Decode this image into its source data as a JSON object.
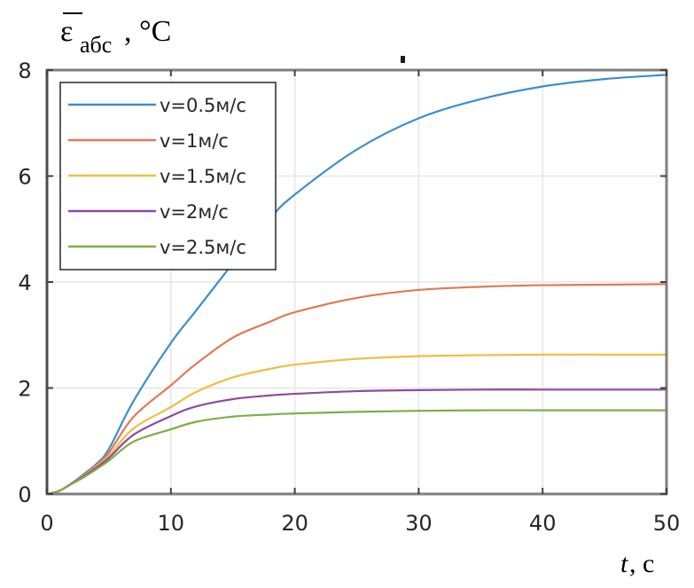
{
  "chart_data": {
    "type": "line",
    "title": "",
    "ylabel": {
      "symbol": "ε",
      "subscript": "абс",
      "unit": ", °C"
    },
    "xlabel": {
      "symbol": "t",
      "unit": ", c"
    },
    "xlim": [
      0,
      50
    ],
    "ylim": [
      0,
      8
    ],
    "xticks": [
      "0",
      "10",
      "20",
      "30",
      "40",
      "50"
    ],
    "yticks": [
      "0",
      "2",
      "4",
      "6",
      "8"
    ],
    "xtick_values": [
      0,
      10,
      20,
      30,
      40,
      50
    ],
    "ytick_values": [
      0,
      2,
      4,
      6,
      8
    ],
    "grid": true,
    "legend_position": "top-left",
    "x": [
      0,
      1,
      2,
      3,
      4,
      5,
      7,
      10,
      12,
      15,
      18,
      20,
      25,
      30,
      35,
      40,
      45,
      50
    ],
    "series": [
      {
        "name": "v=0.5м/с",
        "color": "#3b8fcc",
        "values": [
          0,
          0.06,
          0.2,
          0.38,
          0.57,
          0.85,
          1.76,
          2.85,
          3.45,
          4.35,
          5.2,
          5.65,
          6.5,
          7.09,
          7.45,
          7.69,
          7.83,
          7.91
        ]
      },
      {
        "name": "v=1м/с",
        "color": "#e07a55",
        "values": [
          0,
          0.06,
          0.2,
          0.36,
          0.55,
          0.78,
          1.46,
          2.05,
          2.45,
          2.95,
          3.25,
          3.43,
          3.7,
          3.85,
          3.91,
          3.94,
          3.95,
          3.96
        ]
      },
      {
        "name": "v=1.5м/с",
        "color": "#edbf45",
        "values": [
          0,
          0.06,
          0.2,
          0.35,
          0.52,
          0.72,
          1.24,
          1.64,
          1.92,
          2.2,
          2.36,
          2.44,
          2.55,
          2.6,
          2.62,
          2.63,
          2.63,
          2.63
        ]
      },
      {
        "name": "v=2м/с",
        "color": "#8e4a9e",
        "values": [
          0,
          0.06,
          0.2,
          0.34,
          0.5,
          0.68,
          1.12,
          1.47,
          1.65,
          1.79,
          1.86,
          1.89,
          1.94,
          1.96,
          1.97,
          1.97,
          1.97,
          1.97
        ]
      },
      {
        "name": "v=2.5м/с",
        "color": "#7fae45",
        "values": [
          0,
          0.06,
          0.19,
          0.32,
          0.47,
          0.63,
          0.99,
          1.22,
          1.36,
          1.46,
          1.5,
          1.52,
          1.55,
          1.57,
          1.58,
          1.58,
          1.58,
          1.58
        ]
      }
    ]
  }
}
